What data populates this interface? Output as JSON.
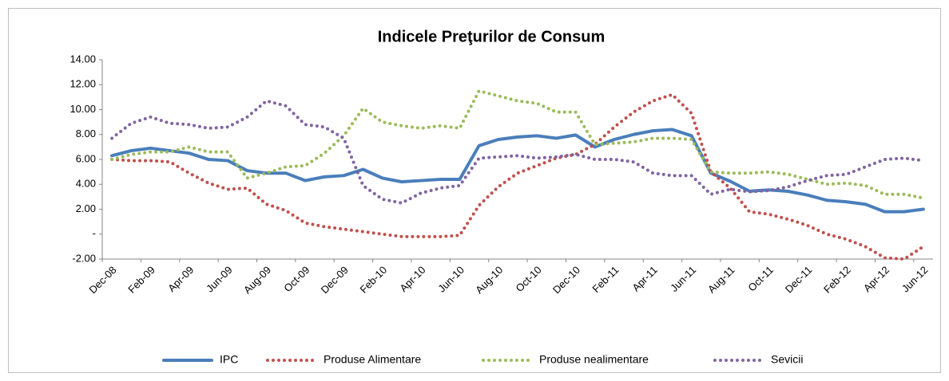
{
  "chart_data": {
    "type": "line",
    "title": "Indicele Preţurilor de Consum",
    "categories": [
      "Dec-08",
      null,
      "Feb-09",
      null,
      "Apr-09",
      null,
      "Jun-09",
      null,
      "Aug-09",
      null,
      "Oct-09",
      null,
      "Dec-09",
      null,
      "Feb-10",
      null,
      "Apr-10",
      null,
      "Jun-10",
      null,
      "Aug-10",
      null,
      "Oct-10",
      null,
      "Dec-10",
      null,
      "Feb-11",
      null,
      "Apr-11",
      null,
      "Jun-11",
      null,
      "Aug-11",
      null,
      "Oct-11",
      null,
      "Dec-11",
      null,
      "Feb-12",
      null,
      "Apr-12",
      null,
      "Jun-12"
    ],
    "series": [
      {
        "name": "IPC",
        "color": "#4a7ebb",
        "style": "solid",
        "values": [
          6.3,
          6.7,
          6.9,
          6.7,
          6.5,
          6.0,
          5.9,
          5.1,
          4.9,
          4.9,
          4.3,
          4.6,
          4.7,
          5.2,
          4.5,
          4.2,
          4.3,
          4.4,
          4.4,
          7.1,
          7.6,
          7.8,
          7.9,
          7.7,
          7.96,
          7.0,
          7.6,
          8.0,
          8.3,
          8.4,
          7.9,
          4.9,
          4.25,
          3.45,
          3.55,
          3.44,
          3.14,
          2.72,
          2.6,
          2.4,
          1.8,
          1.8,
          2.0
        ]
      },
      {
        "name": "Produse Alimentare",
        "color": "#c0504d",
        "style": "dotted",
        "values": [
          6.0,
          5.9,
          5.9,
          5.8,
          4.9,
          4.1,
          3.6,
          3.7,
          2.4,
          1.9,
          0.9,
          0.6,
          0.4,
          0.2,
          0.0,
          -0.2,
          -0.2,
          -0.2,
          -0.1,
          2.3,
          3.8,
          4.9,
          5.5,
          6.1,
          6.4,
          7.2,
          8.6,
          9.8,
          10.7,
          11.2,
          9.7,
          5.0,
          3.7,
          1.8,
          1.6,
          1.2,
          0.7,
          0.0,
          -0.4,
          -1.0,
          -1.9,
          -2.0,
          -1.0
        ]
      },
      {
        "name": "Produse nealimentare",
        "color": "#9bbb59",
        "style": "dotted",
        "values": [
          6.0,
          6.4,
          6.6,
          6.6,
          7.0,
          6.6,
          6.6,
          4.5,
          4.9,
          5.4,
          5.5,
          6.5,
          7.9,
          10.1,
          9.0,
          8.7,
          8.5,
          8.7,
          8.5,
          11.5,
          11.1,
          10.7,
          10.5,
          9.8,
          9.8,
          7.2,
          7.3,
          7.4,
          7.7,
          7.7,
          7.6,
          5.0,
          4.9,
          4.9,
          5.0,
          4.8,
          4.4,
          4.0,
          4.1,
          3.9,
          3.2,
          3.2,
          2.9
        ]
      },
      {
        "name": "Sevicii",
        "color": "#8064a2",
        "style": "dotted",
        "values": [
          7.7,
          8.9,
          9.4,
          8.9,
          8.8,
          8.5,
          8.6,
          9.4,
          10.7,
          10.3,
          8.8,
          8.6,
          7.7,
          3.9,
          2.8,
          2.5,
          3.3,
          3.7,
          3.9,
          6.1,
          6.2,
          6.3,
          6.1,
          6.2,
          6.4,
          6.0,
          6.0,
          5.8,
          4.9,
          4.7,
          4.7,
          3.2,
          3.6,
          3.4,
          3.5,
          3.8,
          4.3,
          4.7,
          4.8,
          5.4,
          6.0,
          6.1,
          5.9
        ]
      }
    ],
    "ylim": [
      -2,
      14
    ],
    "yticks": [
      {
        "value": -2,
        "label": "-2.00"
      },
      {
        "value": 0,
        "label": "-"
      },
      {
        "value": 2,
        "label": "2.00"
      },
      {
        "value": 4,
        "label": "4.00"
      },
      {
        "value": 6,
        "label": "6.00"
      },
      {
        "value": 8,
        "label": "8.00"
      },
      {
        "value": 10,
        "label": "10.00"
      },
      {
        "value": 12,
        "label": "12.00"
      },
      {
        "value": 14,
        "label": "14.00"
      }
    ],
    "grid": false,
    "legend": "bottom"
  }
}
